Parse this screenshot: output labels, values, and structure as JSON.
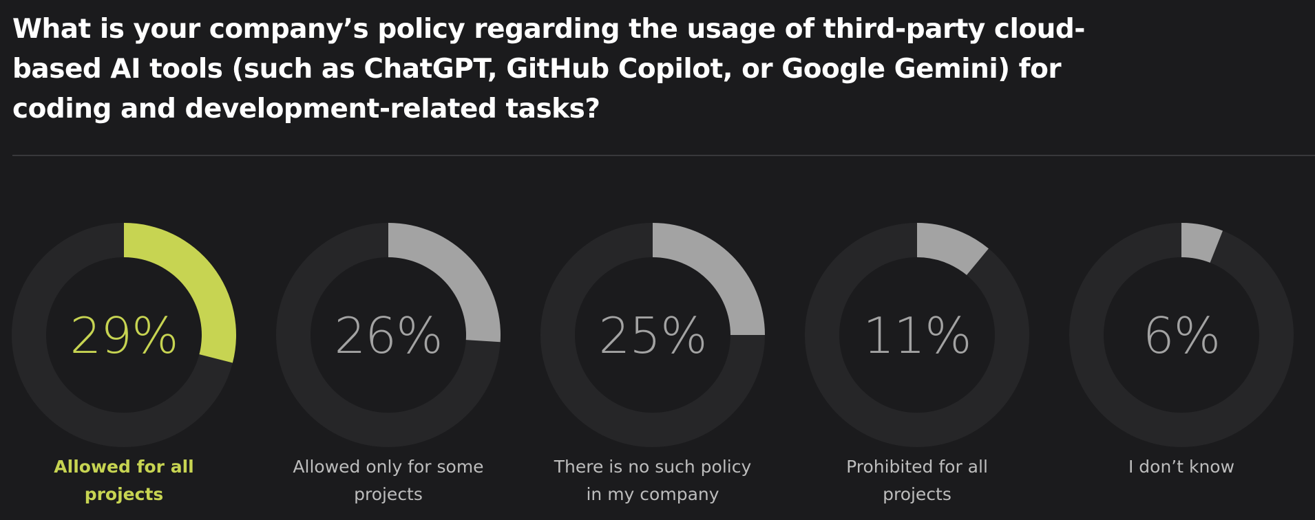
{
  "question": "What is your company’s policy regarding the usage of third-party cloud-based AI tools (such as ChatGPT, GitHub Copilot, or Google Gemini) for coding and development-related tasks?",
  "colors": {
    "background": "#1b1b1d",
    "track": "#262628",
    "highlight": "#c7d452",
    "muted": "#a3a3a3",
    "muted_text": "#bdbdbd",
    "title": "#ffffff"
  },
  "chart_data": {
    "type": "pie",
    "subtype": "donut-small-multiples",
    "title": "What is your company’s policy regarding the usage of third-party cloud-based AI tools (such as ChatGPT, GitHub Copilot, or Google Gemini) for coding and development-related tasks?",
    "categories": [
      "Allowed for all projects",
      "Allowed only for some projects",
      "There is no such policy in my company",
      "Prohibited for all projects",
      "I don’t know"
    ],
    "values": [
      29,
      26,
      25,
      11,
      6
    ],
    "value_labels": [
      "29%",
      "26%",
      "25%",
      "11%",
      "6%"
    ],
    "unit": "%",
    "highlighted_index": 0,
    "legend": "none",
    "grid": false
  }
}
